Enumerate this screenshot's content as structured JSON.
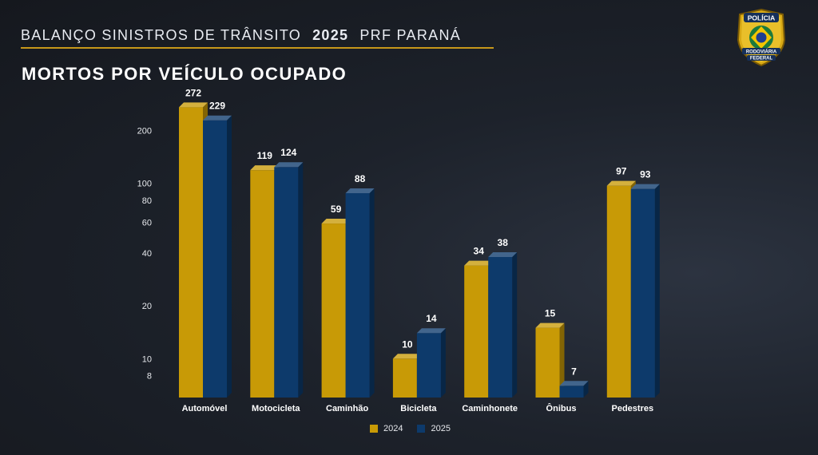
{
  "header": {
    "title": "BALANÇO SINISTROS DE TRÂNSITO",
    "year": "2025",
    "org": "PRF PARANÁ"
  },
  "badge": {
    "icon": "prf-badge-icon",
    "top_text": "POLÍCIA",
    "bottom_text_1": "RODOVIÁRIA",
    "bottom_text_2": "FEDERAL"
  },
  "colors": {
    "series_2024": "#c89a06",
    "series_2025": "#0d3a6b",
    "accent": "#c7981a"
  },
  "chart_data": {
    "type": "bar",
    "title": "MORTOS POR VEÍCULO OCUPADO",
    "scale": "log",
    "categories": [
      "Automóvel",
      "Motocicleta",
      "Caminhão",
      "Bicicleta",
      "Caminhonete",
      "Ônibus",
      "Pedestres"
    ],
    "series": [
      {
        "name": "2024",
        "values": [
          272,
          119,
          59,
          10,
          34,
          15,
          97
        ]
      },
      {
        "name": "2025",
        "values": [
          229,
          124,
          88,
          14,
          38,
          7,
          93
        ]
      }
    ],
    "yticks": [
      8,
      10,
      20,
      40,
      60,
      80,
      100,
      200
    ],
    "ylim": [
      6,
      300
    ],
    "xlabel": "",
    "ylabel": "",
    "legend": "bottom-center"
  }
}
